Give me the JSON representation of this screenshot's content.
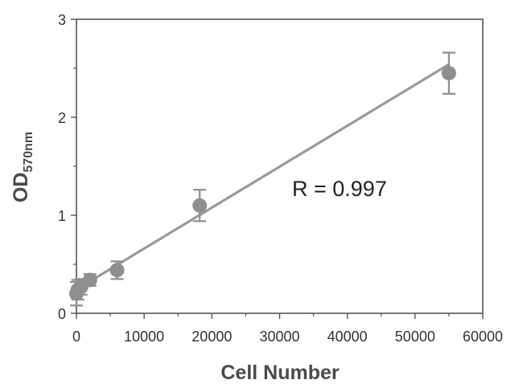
{
  "chart_data": {
    "type": "scatter",
    "xlabel": "Cell Number",
    "ylabel": "OD",
    "ylabel_subscript": "570nm",
    "xlim": [
      0,
      60000
    ],
    "ylim": [
      0,
      3
    ],
    "x_ticks": [
      "0",
      "10000",
      "20000",
      "30000",
      "40000",
      "50000",
      "60000"
    ],
    "y_ticks": [
      "0",
      "1",
      "2",
      "3"
    ],
    "grid": false,
    "annotation": "R = 0.997",
    "colors": {
      "marker": "#8f8f8f",
      "line": "#9a9a9a",
      "axis": "#555555"
    },
    "series": [
      {
        "points": [
          {
            "x": 0,
            "y": 0.2,
            "err": 0.12
          },
          {
            "x": 200,
            "y": 0.24,
            "err": 0.1
          },
          {
            "x": 700,
            "y": 0.27,
            "err": 0.08
          },
          {
            "x": 2000,
            "y": 0.34,
            "err": 0.06
          },
          {
            "x": 6000,
            "y": 0.44,
            "err": 0.09
          },
          {
            "x": 18200,
            "y": 1.1,
            "err": 0.16
          },
          {
            "x": 55000,
            "y": 2.45,
            "err": 0.21
          }
        ]
      }
    ],
    "fit_line": {
      "x": [
        400,
        55000
      ],
      "y": [
        0.26,
        2.54
      ]
    }
  }
}
